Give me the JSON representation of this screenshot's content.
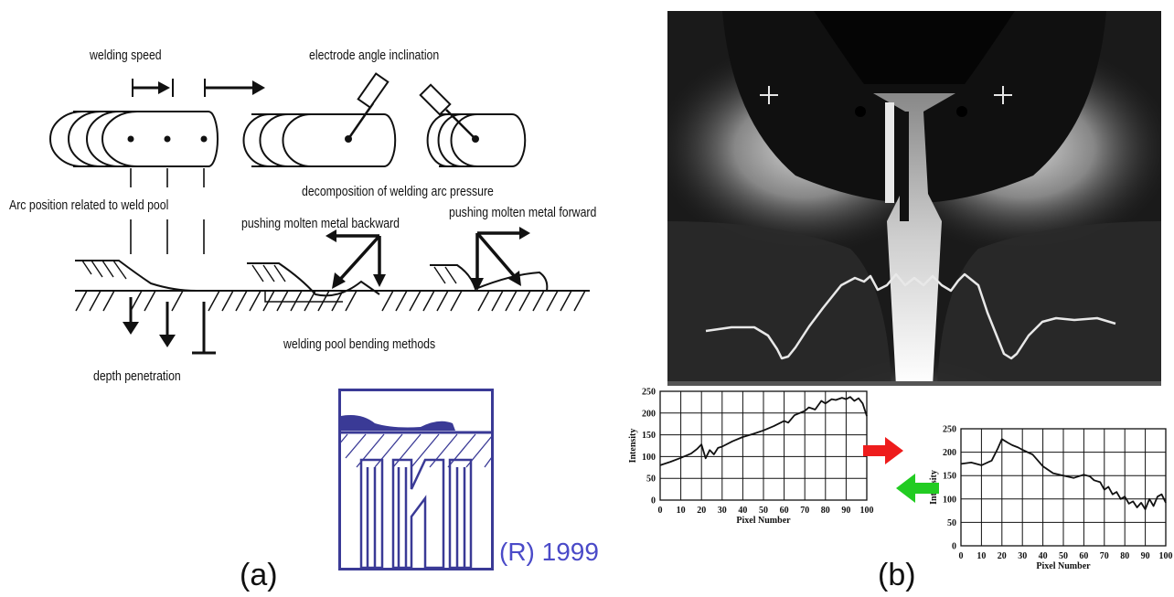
{
  "panel_a": {
    "label": "(a)",
    "labels": {
      "welding_speed": "welding speed",
      "electrode_angle": "electrode angle inclination",
      "decomposition": "decomposition of welding arc pressure",
      "arc_position": "Arc position related to weld pool",
      "push_backward": "pushing molten metal backward",
      "push_forward": "pushing molten metal forward",
      "bending_methods": "welding pool bending methods",
      "depth": "depth penetration"
    },
    "logo": {
      "registered": "(R) 1999",
      "color": "#3a3a96"
    }
  },
  "panel_b": {
    "label": "(b)",
    "arrow_colors": {
      "forward": "#ee1c1c",
      "back": "#22cc22"
    }
  },
  "chart_data": [
    {
      "type": "line",
      "xlabel": "Pixel Number",
      "ylabel": "Intensity",
      "xlim": [
        0,
        100
      ],
      "ylim": [
        0,
        250
      ],
      "xticks": [
        0,
        10,
        20,
        30,
        40,
        50,
        60,
        70,
        80,
        90,
        100
      ],
      "yticks": [
        0,
        50,
        100,
        150,
        200,
        250
      ],
      "grid": true,
      "x": [
        0,
        5,
        10,
        15,
        18,
        20,
        22,
        24,
        26,
        28,
        30,
        35,
        40,
        45,
        50,
        55,
        60,
        62,
        65,
        70,
        72,
        75,
        78,
        80,
        83,
        85,
        88,
        90,
        92,
        94,
        96,
        98,
        100
      ],
      "y": [
        80,
        88,
        97,
        107,
        118,
        128,
        96,
        115,
        105,
        120,
        123,
        135,
        145,
        152,
        160,
        170,
        182,
        178,
        195,
        205,
        213,
        208,
        228,
        222,
        232,
        230,
        235,
        232,
        237,
        228,
        234,
        222,
        193
      ]
    },
    {
      "type": "line",
      "xlabel": "Pixel Number",
      "ylabel": "Intensity",
      "xlim": [
        0,
        100
      ],
      "ylim": [
        0,
        250
      ],
      "xticks": [
        0,
        10,
        20,
        30,
        40,
        50,
        60,
        70,
        80,
        90,
        100
      ],
      "yticks": [
        0,
        50,
        100,
        150,
        200,
        250
      ],
      "grid": true,
      "x": [
        0,
        5,
        10,
        15,
        18,
        20,
        23,
        25,
        28,
        30,
        35,
        40,
        45,
        50,
        55,
        60,
        63,
        65,
        68,
        70,
        72,
        74,
        76,
        78,
        80,
        82,
        84,
        86,
        88,
        90,
        92,
        94,
        96,
        98,
        100
      ],
      "y": [
        175,
        178,
        172,
        182,
        208,
        228,
        220,
        215,
        210,
        205,
        195,
        170,
        155,
        150,
        145,
        152,
        148,
        140,
        136,
        120,
        126,
        110,
        115,
        100,
        105,
        90,
        95,
        82,
        92,
        78,
        100,
        85,
        105,
        110,
        92
      ]
    }
  ]
}
